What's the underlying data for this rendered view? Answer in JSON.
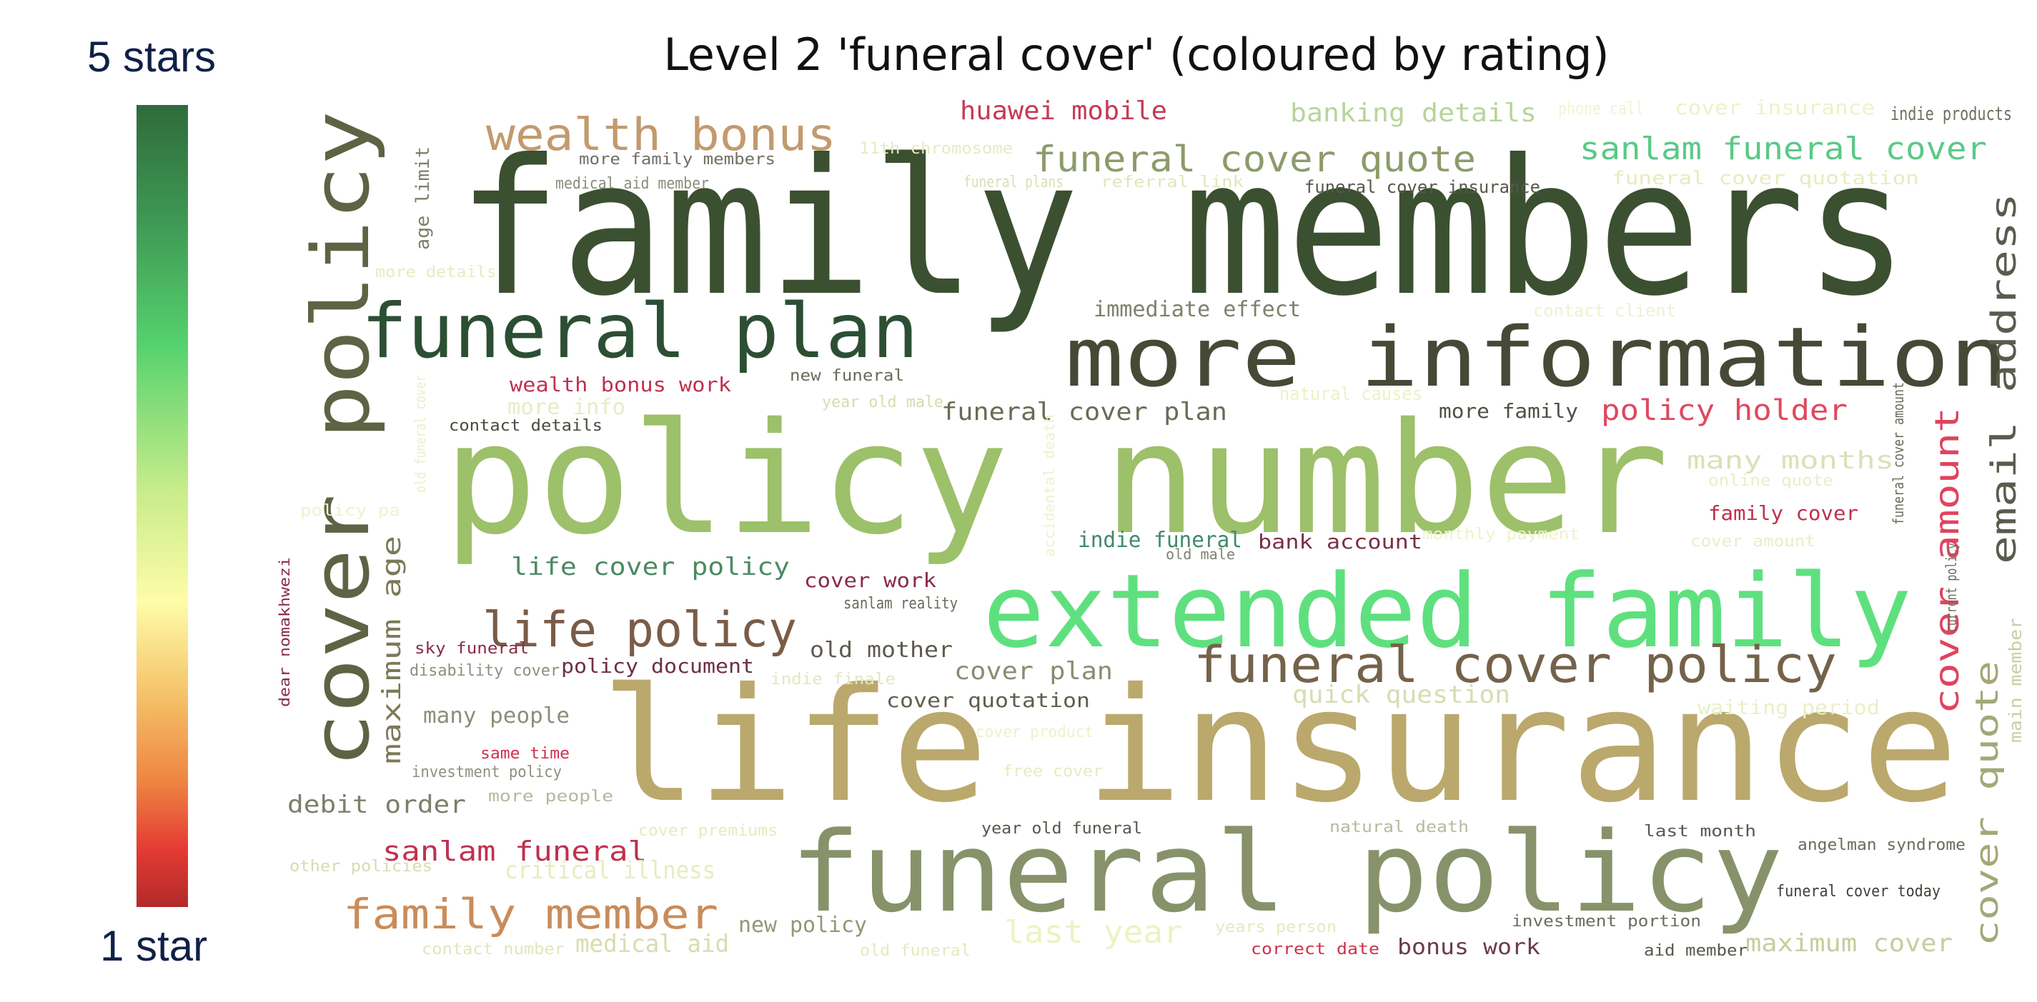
{
  "colorbar": {
    "top_label": "5 stars",
    "bottom_label": "1 star",
    "colors": [
      "#2f6b3c",
      "#56d26e",
      "#fffca8",
      "#ef8743",
      "#b22a2a"
    ]
  },
  "chart_data": {
    "type": "wordcloud",
    "title": "Level 2 'funeral cover' (coloured by rating)",
    "words": [
      {
        "text": "family members",
        "color": "#3b5030"
      },
      {
        "text": "policy number",
        "color": "#9dc06a"
      },
      {
        "text": "life insurance",
        "color": "#bba86c"
      },
      {
        "text": "extended family",
        "color": "#5fe07f"
      },
      {
        "text": "funeral policy",
        "color": "#87926a"
      },
      {
        "text": "more information",
        "color": "#454a36"
      },
      {
        "text": "cover policy",
        "color": "#5e6344"
      },
      {
        "text": "funeral plan",
        "color": "#2c4f34"
      },
      {
        "text": "funeral cover policy",
        "color": "#74624a"
      },
      {
        "text": "life policy",
        "color": "#7a5c47"
      },
      {
        "text": "wealth bonus",
        "color": "#c29a6e"
      },
      {
        "text": "funeral cover quote",
        "color": "#8c9b6a"
      },
      {
        "text": "sanlam funeral cover",
        "color": "#5bc987"
      },
      {
        "text": "email address",
        "color": "#5a5b4e"
      },
      {
        "text": "cover amount",
        "color": "#e0435e"
      },
      {
        "text": "cover quote",
        "color": "#a4a778"
      },
      {
        "text": "family member",
        "color": "#c98c5a"
      },
      {
        "text": "maximum age",
        "color": "#7a7a58"
      },
      {
        "text": "huawei mobile",
        "color": "#c53a56"
      },
      {
        "text": "banking details",
        "color": "#b8d49b"
      },
      {
        "text": "policy holder",
        "color": "#e0485e"
      },
      {
        "text": "funeral cover plan",
        "color": "#6a6b55"
      },
      {
        "text": "life cover policy",
        "color": "#4b8a62"
      },
      {
        "text": "wealth bonus work",
        "color": "#c0304f"
      },
      {
        "text": "sanlam funeral",
        "color": "#c0304f"
      },
      {
        "text": "debit order",
        "color": "#7e7e6a"
      },
      {
        "text": "many months",
        "color": "#d7e3b6"
      },
      {
        "text": "quick question",
        "color": "#d6ddb2"
      },
      {
        "text": "maximum cover",
        "color": "#c5cda0"
      },
      {
        "text": "last year",
        "color": "#eef2c2"
      },
      {
        "text": "critical illness",
        "color": "#e6edc0"
      },
      {
        "text": "medical aid",
        "color": "#d8dcb0"
      },
      {
        "text": "cover plan",
        "color": "#8a8c73"
      },
      {
        "text": "cover quotation",
        "color": "#5f5e4e"
      },
      {
        "text": "old mother",
        "color": "#5f5a4e"
      },
      {
        "text": "policy document",
        "color": "#6e2e48"
      },
      {
        "text": "cover work",
        "color": "#8a2a4a"
      },
      {
        "text": "bank account",
        "color": "#7a2f46"
      },
      {
        "text": "indie funeral",
        "color": "#3f8a6a"
      },
      {
        "text": "family cover",
        "color": "#c0304f"
      },
      {
        "text": "bonus work",
        "color": "#6a3a50"
      },
      {
        "text": "new policy",
        "color": "#8e9a73"
      },
      {
        "text": "many people",
        "color": "#8b8f78"
      },
      {
        "text": "immediate effect",
        "color": "#7f806c"
      },
      {
        "text": "more family",
        "color": "#4f4f45"
      },
      {
        "text": "more info",
        "color": "#e7ecc7"
      },
      {
        "text": "age limit",
        "color": "#7d7f6b"
      },
      {
        "text": "waiting period",
        "color": "#e9f0c8"
      },
      {
        "text": "cover insurance",
        "color": "#eef2c6"
      },
      {
        "text": "funeral cover quotation",
        "color": "#e6ecc0"
      },
      {
        "text": "indie products",
        "color": "#6f705e"
      },
      {
        "text": "phone call",
        "color": "#f1f3d3"
      },
      {
        "text": "more family members",
        "color": "#6f6f62"
      },
      {
        "text": "11th chromosome",
        "color": "#e6ebc3"
      },
      {
        "text": "medical aid member",
        "color": "#8b8d7a"
      },
      {
        "text": "funeral plans",
        "color": "#d9dfb4"
      },
      {
        "text": "referral link",
        "color": "#e0e6bb"
      },
      {
        "text": "funeral cover insurance",
        "color": "#57574b"
      },
      {
        "text": "more details",
        "color": "#e6ecc0"
      },
      {
        "text": "contact client",
        "color": "#eef2d0"
      },
      {
        "text": "new funeral",
        "color": "#6a6b5c"
      },
      {
        "text": "year old male",
        "color": "#d6dcae"
      },
      {
        "text": "contact details",
        "color": "#4a4a40"
      },
      {
        "text": "natural causes",
        "color": "#eef1c8"
      },
      {
        "text": "online quote",
        "color": "#e9eec8"
      },
      {
        "text": "cover amount",
        "color": "#e8edc8"
      },
      {
        "text": "monthly payment",
        "color": "#eef2cb"
      },
      {
        "text": "old male",
        "color": "#808273"
      },
      {
        "text": "sanlam reality",
        "color": "#6a6b5e"
      },
      {
        "text": "sky funeral",
        "color": "#8a2a4a"
      },
      {
        "text": "disability cover",
        "color": "#8e8f7e"
      },
      {
        "text": "indie finale",
        "color": "#e2e8c0"
      },
      {
        "text": "cover product",
        "color": "#eef1c8"
      },
      {
        "text": "free cover",
        "color": "#e6ecc0"
      },
      {
        "text": "investment policy",
        "color": "#8f9080"
      },
      {
        "text": "same time",
        "color": "#d0304f"
      },
      {
        "text": "more people",
        "color": "#b5b89c"
      },
      {
        "text": "cover premiums",
        "color": "#e6ebc0"
      },
      {
        "text": "year old funeral",
        "color": "#56574b"
      },
      {
        "text": "natural death",
        "color": "#b8b9a0"
      },
      {
        "text": "last month",
        "color": "#58594d"
      },
      {
        "text": "angelman syndrome",
        "color": "#6a6b5e"
      },
      {
        "text": "funeral cover today",
        "color": "#3f4038"
      },
      {
        "text": "investment portion",
        "color": "#6b6c5f"
      },
      {
        "text": "years person",
        "color": "#e4eac0"
      },
      {
        "text": "correct date",
        "color": "#d0304f"
      },
      {
        "text": "aid member",
        "color": "#57584c"
      },
      {
        "text": "old funeral",
        "color": "#e4eac0"
      },
      {
        "text": "contact number",
        "color": "#dfe7bc"
      },
      {
        "text": "other policies",
        "color": "#d6dcb0"
      },
      {
        "text": "dear nomakhwezi",
        "color": "#8a2a4a"
      },
      {
        "text": "funeral cover amount",
        "color": "#6a6b5e"
      },
      {
        "text": "current policy",
        "color": "#6a6b5e"
      },
      {
        "text": "main member",
        "color": "#c8cfa6"
      },
      {
        "text": "old funeral cover",
        "color": "#e9efca"
      },
      {
        "text": "accidental death",
        "color": "#eef2d0"
      },
      {
        "text": "policy pa",
        "color": "#eef2d0"
      }
    ]
  }
}
